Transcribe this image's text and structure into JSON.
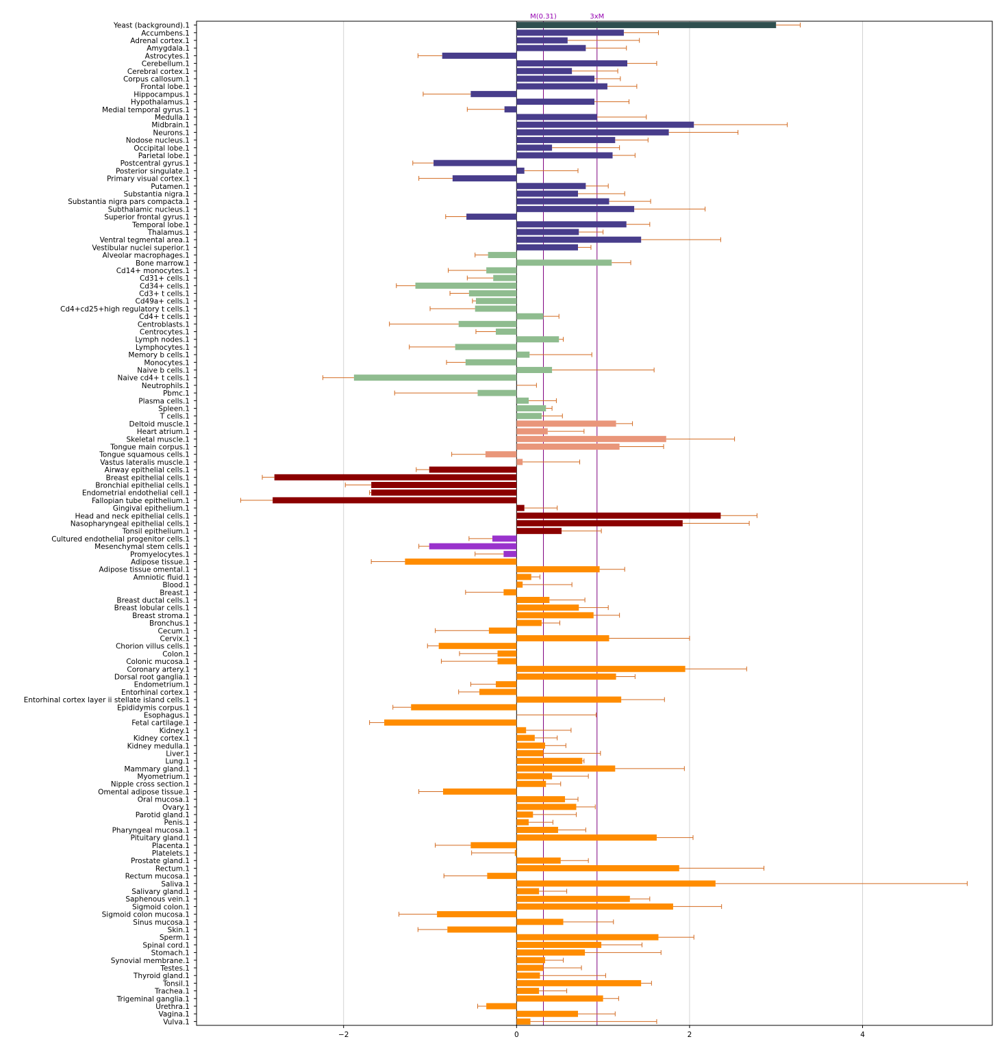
{
  "chart_data": {
    "type": "bar",
    "orientation": "horizontal",
    "xlim": [
      -3.7,
      5.5
    ],
    "x_ticks": [
      -2,
      0,
      2,
      4
    ],
    "grid": "vertical",
    "colors": {
      "background": "#2f4f4f",
      "brain": "#483d8b",
      "immune": "#8fbc8f",
      "muscle": "#e9967a",
      "epithelial": "#8b0000",
      "stem": "#9932cc",
      "other": "#ff8c00",
      "error": "#d2691e",
      "ref": "#800080"
    },
    "reference_lines": [
      {
        "x": 0.31,
        "label": "M(0.31)"
      },
      {
        "x": 0.93,
        "label": "3xM"
      }
    ],
    "bars": [
      {
        "label": "Yeast (background).1",
        "value": 3.0,
        "err": 0.28,
        "group": "background"
      },
      {
        "label": "Accumbens.1",
        "value": 1.24,
        "err": 0.4,
        "group": "brain"
      },
      {
        "label": "Adrenal cortex.1",
        "value": 0.59,
        "err": 0.83,
        "group": "brain"
      },
      {
        "label": "Amygdala.1",
        "value": 0.8,
        "err": 0.47,
        "group": "brain"
      },
      {
        "label": "Astrocytes.1",
        "value": -0.86,
        "err": 0.28,
        "group": "brain"
      },
      {
        "label": "Cerebellum.1",
        "value": 1.28,
        "err": 0.34,
        "group": "brain"
      },
      {
        "label": "Cerebral cortex.1",
        "value": 0.64,
        "err": 0.53,
        "group": "brain"
      },
      {
        "label": "Corpus callosum.1",
        "value": 0.9,
        "err": 0.3,
        "group": "brain"
      },
      {
        "label": "Frontal lobe.1",
        "value": 1.05,
        "err": 0.34,
        "group": "brain"
      },
      {
        "label": "Hippocampus.1",
        "value": -0.53,
        "err": 0.55,
        "group": "brain"
      },
      {
        "label": "Hypothalamus.1",
        "value": 0.9,
        "err": 0.4,
        "group": "brain"
      },
      {
        "label": "Medial temporal gyrus.1",
        "value": -0.14,
        "err": 0.43,
        "group": "brain"
      },
      {
        "label": "Medulla.1",
        "value": 0.93,
        "err": 0.57,
        "group": "brain"
      },
      {
        "label": "Midbrain.1",
        "value": 2.05,
        "err": 1.08,
        "group": "brain"
      },
      {
        "label": "Neurons.1",
        "value": 1.76,
        "err": 0.8,
        "group": "brain"
      },
      {
        "label": "Nodose nucleus.1",
        "value": 1.14,
        "err": 0.38,
        "group": "brain"
      },
      {
        "label": "Occipital lobe.1",
        "value": 0.41,
        "err": 0.78,
        "group": "brain"
      },
      {
        "label": "Parietal lobe.1",
        "value": 1.11,
        "err": 0.26,
        "group": "brain"
      },
      {
        "label": "Postcentral gyrus.1",
        "value": -0.96,
        "err": 0.24,
        "group": "brain"
      },
      {
        "label": "Posterior singulate.1",
        "value": 0.09,
        "err": 0.62,
        "group": "brain"
      },
      {
        "label": "Primary visual cortex.1",
        "value": -0.74,
        "err": 0.39,
        "group": "brain"
      },
      {
        "label": "Putamen.1",
        "value": 0.8,
        "err": 0.26,
        "group": "brain"
      },
      {
        "label": "Substantia nigra.1",
        "value": 0.71,
        "err": 0.54,
        "group": "brain"
      },
      {
        "label": "Substantia nigra pars compacta.1",
        "value": 1.07,
        "err": 0.48,
        "group": "brain"
      },
      {
        "label": "Subthalamic nucleus.1",
        "value": 1.36,
        "err": 0.82,
        "group": "brain"
      },
      {
        "label": "Superior frontal gyrus.1",
        "value": -0.58,
        "err": 0.24,
        "group": "brain"
      },
      {
        "label": "Temporal lobe.1",
        "value": 1.27,
        "err": 0.27,
        "group": "brain"
      },
      {
        "label": "Thalamus.1",
        "value": 0.72,
        "err": 0.28,
        "group": "brain"
      },
      {
        "label": "Ventral tegmental area.1",
        "value": 1.44,
        "err": 0.92,
        "group": "brain"
      },
      {
        "label": "Vestibular nuclei superior.1",
        "value": 0.71,
        "err": 0.15,
        "group": "brain"
      },
      {
        "label": "Alveolar macrophages.1",
        "value": -0.33,
        "err": 0.15,
        "group": "immune"
      },
      {
        "label": "Bone marrow.1",
        "value": 1.1,
        "err": 0.22,
        "group": "immune"
      },
      {
        "label": "Cd14+ monocytes.1",
        "value": -0.35,
        "err": 0.44,
        "group": "immune"
      },
      {
        "label": "Cd31+ cells.1",
        "value": -0.27,
        "err": 0.3,
        "group": "immune"
      },
      {
        "label": "Cd34+ cells.1",
        "value": -1.17,
        "err": 0.22,
        "group": "immune"
      },
      {
        "label": "Cd3+ t cells.1",
        "value": -0.55,
        "err": 0.22,
        "group": "immune"
      },
      {
        "label": "Cd49a+ cells.1",
        "value": -0.47,
        "err": 0.04,
        "group": "immune"
      },
      {
        "label": "Cd4+cd25+high regulatory t cells.1",
        "value": -0.48,
        "err": 0.52,
        "group": "immune"
      },
      {
        "label": "Cd4+ t cells.1",
        "value": 0.31,
        "err": 0.18,
        "group": "immune"
      },
      {
        "label": "Centroblasts.1",
        "value": -0.67,
        "err": 0.8,
        "group": "immune"
      },
      {
        "label": "Centrocytes.1",
        "value": -0.24,
        "err": 0.23,
        "group": "immune"
      },
      {
        "label": "Lymph nodes.1",
        "value": 0.49,
        "err": 0.05,
        "group": "immune"
      },
      {
        "label": "Lymphocytes.1",
        "value": -0.71,
        "err": 0.53,
        "group": "immune"
      },
      {
        "label": "Memory b cells.1",
        "value": 0.15,
        "err": 0.72,
        "group": "immune"
      },
      {
        "label": "Monocytes.1",
        "value": -0.59,
        "err": 0.22,
        "group": "immune"
      },
      {
        "label": "Naive b cells.1",
        "value": 0.41,
        "err": 1.18,
        "group": "immune"
      },
      {
        "label": "Naive cd4+ t cells.1",
        "value": -1.88,
        "err": 0.36,
        "group": "immune"
      },
      {
        "label": "Neutrophils.1",
        "value": 0.0,
        "err": 0.23,
        "group": "immune"
      },
      {
        "label": "Pbmc.1",
        "value": -0.45,
        "err": 0.96,
        "group": "immune"
      },
      {
        "label": "Plasma cells.1",
        "value": 0.14,
        "err": 0.32,
        "group": "immune"
      },
      {
        "label": "Spleen.1",
        "value": 0.34,
        "err": 0.07,
        "group": "immune"
      },
      {
        "label": "T cells.1",
        "value": 0.29,
        "err": 0.24,
        "group": "immune"
      },
      {
        "label": "Deltoid muscle.1",
        "value": 1.15,
        "err": 0.19,
        "group": "muscle"
      },
      {
        "label": "Heart atrium.1",
        "value": 0.36,
        "err": 0.42,
        "group": "muscle"
      },
      {
        "label": "Skeletal muscle.1",
        "value": 1.73,
        "err": 0.79,
        "group": "muscle"
      },
      {
        "label": "Tongue main corpus.1",
        "value": 1.19,
        "err": 0.51,
        "group": "muscle"
      },
      {
        "label": "Tongue squamous cells.1",
        "value": -0.36,
        "err": 0.39,
        "group": "muscle"
      },
      {
        "label": "Vastus lateralis muscle.1",
        "value": 0.07,
        "err": 0.66,
        "group": "muscle"
      },
      {
        "label": "Airway epithelial cells.1",
        "value": -1.01,
        "err": 0.15,
        "group": "epithelial"
      },
      {
        "label": "Breast epithelial cells.1",
        "value": -2.8,
        "err": 0.14,
        "group": "epithelial"
      },
      {
        "label": "Bronchial epithelial cells.1",
        "value": -1.68,
        "err": 0.3,
        "group": "epithelial"
      },
      {
        "label": "Endometrial endothelial cell.1",
        "value": -1.68,
        "err": 0.02,
        "group": "epithelial"
      },
      {
        "label": "Fallopian tube epithelium.1",
        "value": -2.82,
        "err": 0.37,
        "group": "epithelial"
      },
      {
        "label": "Gingival epithelium.1",
        "value": 0.09,
        "err": 0.38,
        "group": "epithelial"
      },
      {
        "label": "Head and neck epithelial cells.1",
        "value": 2.36,
        "err": 0.42,
        "group": "epithelial"
      },
      {
        "label": "Nasopharyngeal epithelial cells.1",
        "value": 1.92,
        "err": 0.77,
        "group": "epithelial"
      },
      {
        "label": "Tonsil epithelium.1",
        "value": 0.52,
        "err": 0.46,
        "group": "epithelial"
      },
      {
        "label": "Cultured endothelial progenitor cells.1",
        "value": -0.28,
        "err": 0.27,
        "group": "stem"
      },
      {
        "label": "Mesenchymal stem cells.1",
        "value": -1.01,
        "err": 0.12,
        "group": "stem"
      },
      {
        "label": "Promyelocytes.1",
        "value": -0.15,
        "err": 0.33,
        "group": "stem"
      },
      {
        "label": "Adipose tissue.1",
        "value": -1.29,
        "err": 0.39,
        "group": "other"
      },
      {
        "label": "Adipose tissue omental.1",
        "value": 0.96,
        "err": 0.29,
        "group": "other"
      },
      {
        "label": "Amniotic fluid.1",
        "value": 0.17,
        "err": 0.1,
        "group": "other"
      },
      {
        "label": "Blood.1",
        "value": 0.07,
        "err": 0.57,
        "group": "other"
      },
      {
        "label": "Breast.1",
        "value": -0.15,
        "err": 0.44,
        "group": "other"
      },
      {
        "label": "Breast ductal cells.1",
        "value": 0.38,
        "err": 0.41,
        "group": "other"
      },
      {
        "label": "Breast lobular cells.1",
        "value": 0.72,
        "err": 0.34,
        "group": "other"
      },
      {
        "label": "Breast stroma.1",
        "value": 0.89,
        "err": 0.3,
        "group": "other"
      },
      {
        "label": "Bronchus.1",
        "value": 0.29,
        "err": 0.21,
        "group": "other"
      },
      {
        "label": "Cecum.1",
        "value": -0.32,
        "err": 0.62,
        "group": "other"
      },
      {
        "label": "Cervix.1",
        "value": 1.07,
        "err": 0.93,
        "group": "other"
      },
      {
        "label": "Chorion villus cells.1",
        "value": -0.9,
        "err": 0.13,
        "group": "other"
      },
      {
        "label": "Colon.1",
        "value": -0.22,
        "err": 0.44,
        "group": "other"
      },
      {
        "label": "Colonic mucosa.1",
        "value": -0.22,
        "err": 0.65,
        "group": "other"
      },
      {
        "label": "Coronary artery.1",
        "value": 1.95,
        "err": 0.71,
        "group": "other"
      },
      {
        "label": "Dorsal root ganglia.1",
        "value": 1.15,
        "err": 0.22,
        "group": "other"
      },
      {
        "label": "Endometrium.1",
        "value": -0.24,
        "err": 0.29,
        "group": "other"
      },
      {
        "label": "Entorhinal cortex.1",
        "value": -0.43,
        "err": 0.24,
        "group": "other"
      },
      {
        "label": "Entorhinal cortex layer ii stellate island cells.1",
        "value": 1.21,
        "err": 0.5,
        "group": "other"
      },
      {
        "label": "Epididymis corpus.1",
        "value": -1.22,
        "err": 0.21,
        "group": "other"
      },
      {
        "label": "Esophagus.1",
        "value": 0.0,
        "err": 0.92,
        "group": "other"
      },
      {
        "label": "Fetal cartilage.1",
        "value": -1.53,
        "err": 0.17,
        "group": "other"
      },
      {
        "label": "Kidney.1",
        "value": 0.11,
        "err": 0.52,
        "group": "other"
      },
      {
        "label": "Kidney cortex.1",
        "value": 0.21,
        "err": 0.26,
        "group": "other"
      },
      {
        "label": "Kidney medulla.1",
        "value": 0.33,
        "err": 0.24,
        "group": "other"
      },
      {
        "label": "Liver.1",
        "value": 0.31,
        "err": 0.66,
        "group": "other"
      },
      {
        "label": "Lung.1",
        "value": 0.76,
        "err": 0.02,
        "group": "other"
      },
      {
        "label": "Mammary gland.1",
        "value": 1.14,
        "err": 0.8,
        "group": "other"
      },
      {
        "label": "Myometrium.1",
        "value": 0.41,
        "err": 0.42,
        "group": "other"
      },
      {
        "label": "Nipple cross section.1",
        "value": 0.34,
        "err": 0.17,
        "group": "other"
      },
      {
        "label": "Omental adipose tissue.1",
        "value": -0.85,
        "err": 0.28,
        "group": "other"
      },
      {
        "label": "Oral mucosa.1",
        "value": 0.56,
        "err": 0.15,
        "group": "other"
      },
      {
        "label": "Ovary.1",
        "value": 0.69,
        "err": 0.22,
        "group": "other"
      },
      {
        "label": "Parotid gland.1",
        "value": 0.19,
        "err": 0.5,
        "group": "other"
      },
      {
        "label": "Penis.1",
        "value": 0.14,
        "err": 0.28,
        "group": "other"
      },
      {
        "label": "Pharyngeal mucosa.1",
        "value": 0.48,
        "err": 0.32,
        "group": "other"
      },
      {
        "label": "Pituitary gland.1",
        "value": 1.62,
        "err": 0.42,
        "group": "other"
      },
      {
        "label": "Placenta.1",
        "value": -0.53,
        "err": 0.41,
        "group": "other"
      },
      {
        "label": "Platelets.1",
        "value": -0.02,
        "err": 0.5,
        "group": "other"
      },
      {
        "label": "Prostate gland.1",
        "value": 0.51,
        "err": 0.32,
        "group": "other"
      },
      {
        "label": "Rectum.1",
        "value": 1.88,
        "err": 0.98,
        "group": "other"
      },
      {
        "label": "Rectum mucosa.1",
        "value": -0.34,
        "err": 0.5,
        "group": "other"
      },
      {
        "label": "Saliva.1",
        "value": 2.3,
        "err": 2.91,
        "group": "other"
      },
      {
        "label": "Salivary gland.1",
        "value": 0.26,
        "err": 0.32,
        "group": "other"
      },
      {
        "label": "Saphenous vein.1",
        "value": 1.31,
        "err": 0.23,
        "group": "other"
      },
      {
        "label": "Sigmoid colon.1",
        "value": 1.81,
        "err": 0.56,
        "group": "other"
      },
      {
        "label": "Sigmoid colon mucosa.1",
        "value": -0.92,
        "err": 0.44,
        "group": "other"
      },
      {
        "label": "Sinus mucosa.1",
        "value": 0.54,
        "err": 0.58,
        "group": "other"
      },
      {
        "label": "Skin.1",
        "value": -0.8,
        "err": 0.34,
        "group": "other"
      },
      {
        "label": "Sperm.1",
        "value": 1.64,
        "err": 0.41,
        "group": "other"
      },
      {
        "label": "Spinal cord.1",
        "value": 0.98,
        "err": 0.47,
        "group": "other"
      },
      {
        "label": "Stomach.1",
        "value": 0.79,
        "err": 0.88,
        "group": "other"
      },
      {
        "label": "Synovial membrane.1",
        "value": 0.33,
        "err": 0.21,
        "group": "other"
      },
      {
        "label": "Testes.1",
        "value": 0.31,
        "err": 0.44,
        "group": "other"
      },
      {
        "label": "Thyroid gland.1",
        "value": 0.27,
        "err": 0.76,
        "group": "other"
      },
      {
        "label": "Tonsil.1",
        "value": 1.44,
        "err": 0.12,
        "group": "other"
      },
      {
        "label": "Trachea.1",
        "value": 0.26,
        "err": 0.32,
        "group": "other"
      },
      {
        "label": "Trigeminal ganglia.1",
        "value": 1.0,
        "err": 0.18,
        "group": "other"
      },
      {
        "label": "Urethra.1",
        "value": -0.35,
        "err": 0.1,
        "group": "other"
      },
      {
        "label": "Vagina.1",
        "value": 0.71,
        "err": 0.43,
        "group": "other"
      },
      {
        "label": "Vulva.1",
        "value": 0.16,
        "err": 1.46,
        "group": "other"
      }
    ]
  }
}
